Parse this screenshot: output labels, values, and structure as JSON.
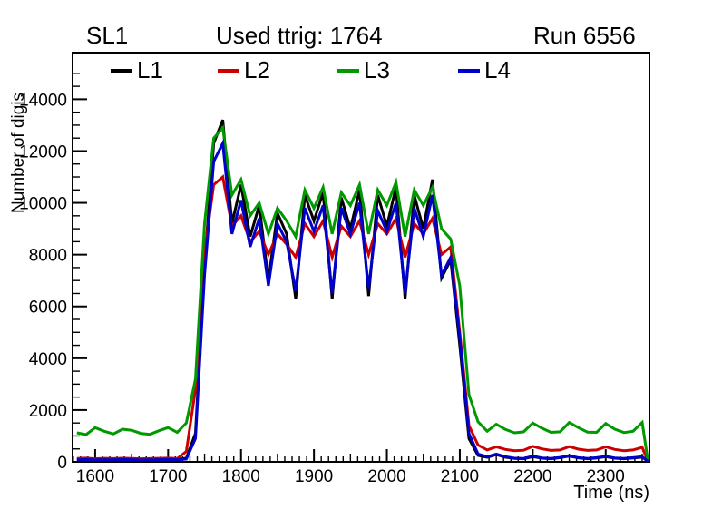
{
  "header": {
    "left": "SL1",
    "title": "Used ttrig: 1764",
    "right": "Run 6556"
  },
  "chart_data": {
    "type": "line",
    "title": "Used ttrig: 1764",
    "xlabel": "Time (ns)",
    "ylabel": "Number of digis",
    "xlim": [
      1569,
      2360
    ],
    "ylim": [
      0,
      15800
    ],
    "grid": false,
    "legend_position": "top-inside-row",
    "x_major_ticks": [
      1600,
      1700,
      1800,
      1900,
      2000,
      2100,
      2200,
      2300
    ],
    "x_medium_step": 50,
    "x_minor_step": 10,
    "y_major_ticks": [
      0,
      2000,
      4000,
      6000,
      8000,
      10000,
      12000,
      14000
    ],
    "y_minor_step": 500,
    "axis_color": "#000000",
    "x": [
      1575,
      1587.5,
      1600,
      1612.5,
      1625,
      1637.5,
      1650,
      1662.5,
      1675,
      1687.5,
      1700,
      1712.5,
      1725,
      1737.5,
      1750,
      1762.5,
      1775,
      1787.5,
      1800,
      1812.5,
      1825,
      1837.5,
      1850,
      1862.5,
      1875,
      1887.5,
      1900,
      1912.5,
      1925,
      1937.5,
      1950,
      1962.5,
      1975,
      1987.5,
      2000,
      2012.5,
      2025,
      2037.5,
      2050,
      2062.5,
      2075,
      2087.5,
      2100,
      2112.5,
      2125,
      2137.5,
      2150,
      2162.5,
      2175,
      2187.5,
      2200,
      2212.5,
      2225,
      2237.5,
      2250,
      2262.5,
      2275,
      2287.5,
      2300,
      2312.5,
      2325,
      2337.5,
      2350,
      2358
    ],
    "series": [
      {
        "name": "L1",
        "color": "#000000",
        "values": [
          90,
          105,
          85,
          95,
          90,
          100,
          95,
          85,
          90,
          95,
          105,
          90,
          140,
          1100,
          7600,
          12300,
          13200,
          9200,
          10700,
          8700,
          9900,
          7000,
          9600,
          8800,
          6300,
          10300,
          9300,
          10400,
          6300,
          10200,
          9000,
          10500,
          6400,
          10300,
          9100,
          10600,
          6300,
          10300,
          9000,
          10900,
          7100,
          7800,
          4500,
          900,
          250,
          180,
          280,
          180,
          130,
          120,
          200,
          140,
          120,
          160,
          220,
          150,
          120,
          150,
          200,
          140,
          120,
          150,
          180,
          20
        ]
      },
      {
        "name": "L2",
        "color": "#cc0000",
        "values": [
          130,
          145,
          120,
          135,
          125,
          140,
          130,
          120,
          125,
          135,
          145,
          125,
          400,
          2800,
          8100,
          10700,
          11000,
          9100,
          9500,
          8500,
          8900,
          8000,
          8800,
          8400,
          7900,
          9200,
          8700,
          9300,
          7900,
          9100,
          8700,
          9300,
          8000,
          9200,
          8800,
          9400,
          7900,
          9200,
          8800,
          9400,
          8000,
          8300,
          5000,
          1400,
          650,
          460,
          580,
          480,
          430,
          450,
          600,
          500,
          440,
          460,
          590,
          490,
          440,
          460,
          580,
          480,
          430,
          460,
          560,
          20
        ]
      },
      {
        "name": "L3",
        "color": "#009900",
        "values": [
          1120,
          1050,
          1320,
          1180,
          1080,
          1260,
          1220,
          1100,
          1060,
          1200,
          1320,
          1140,
          1500,
          3200,
          9200,
          12500,
          12900,
          10300,
          10900,
          9500,
          10000,
          8800,
          9800,
          9300,
          8700,
          10500,
          9800,
          10600,
          8800,
          10400,
          9900,
          10700,
          8800,
          10500,
          9900,
          10800,
          8700,
          10500,
          9900,
          10600,
          9000,
          8600,
          6800,
          2600,
          1550,
          1180,
          1450,
          1250,
          1120,
          1160,
          1500,
          1300,
          1140,
          1160,
          1520,
          1320,
          1150,
          1140,
          1480,
          1260,
          1130,
          1180,
          1520,
          30
        ]
      },
      {
        "name": "L4",
        "color": "#0000cc",
        "values": [
          80,
          90,
          75,
          85,
          80,
          90,
          85,
          75,
          80,
          85,
          90,
          80,
          110,
          900,
          7200,
          11600,
          12300,
          8800,
          10100,
          8300,
          9400,
          6800,
          9200,
          8500,
          6600,
          9800,
          8900,
          9900,
          6500,
          9800,
          8800,
          10000,
          6700,
          9700,
          8900,
          10000,
          6500,
          9800,
          8700,
          10300,
          7200,
          7900,
          4800,
          1100,
          300,
          200,
          300,
          200,
          140,
          130,
          220,
          150,
          130,
          170,
          240,
          160,
          130,
          160,
          210,
          150,
          130,
          160,
          200,
          15
        ]
      }
    ]
  }
}
